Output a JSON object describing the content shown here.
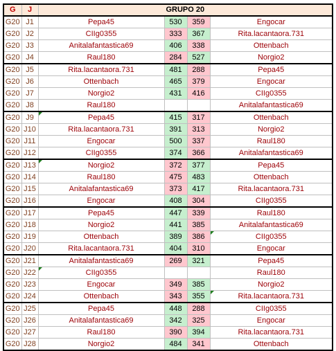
{
  "header": {
    "g": "G",
    "j": "J",
    "title": "GRUPO 20"
  },
  "rows": [
    {
      "g": "G20",
      "j": "J1",
      "home": "Pepa45",
      "hs": "530",
      "as": "359",
      "away": "Engocar",
      "hw": true
    },
    {
      "g": "G20",
      "j": "J2",
      "home": "CIIg0355",
      "hs": "333",
      "as": "367",
      "away": "Rita.lacantaora.731",
      "hw": false
    },
    {
      "g": "G20",
      "j": "J3",
      "home": "Anitalafantastica69",
      "hs": "406",
      "as": "338",
      "away": "Ottenbach",
      "hw": true
    },
    {
      "g": "G20",
      "j": "J4",
      "home": "Raul180",
      "hs": "284",
      "as": "527",
      "away": "Norgio2",
      "hw": false
    },
    {
      "g": "G20",
      "j": "J5",
      "home": "Rita.lacantaora.731",
      "hs": "481",
      "as": "288",
      "away": "Pepa45",
      "hw": true
    },
    {
      "g": "G20",
      "j": "J6",
      "home": "Ottenbach",
      "hs": "465",
      "as": "379",
      "away": "Engocar",
      "hw": true
    },
    {
      "g": "G20",
      "j": "J7",
      "home": "Norgio2",
      "hs": "431",
      "as": "416",
      "away": "CIIg0355",
      "hw": true
    },
    {
      "g": "G20",
      "j": "J8",
      "home": "Raul180",
      "hs": "",
      "as": "",
      "away": "Anitalafantastica69",
      "hw": null
    },
    {
      "g": "G20",
      "j": "J9",
      "home": "Pepa45",
      "hs": "415",
      "as": "317",
      "away": "Ottenbach",
      "hw": true
    },
    {
      "g": "G20",
      "j": "J10",
      "home": "Rita.lacantaora.731",
      "hs": "391",
      "as": "313",
      "away": "Norgio2",
      "hw": true
    },
    {
      "g": "G20",
      "j": "J11",
      "home": "Engocar",
      "hs": "500",
      "as": "337",
      "away": "Raul180",
      "hw": true
    },
    {
      "g": "G20",
      "j": "J12",
      "home": "CIIg0355",
      "hs": "374",
      "as": "366",
      "away": "Anitalafantastica69",
      "hw": true
    },
    {
      "g": "G20",
      "j": "J13",
      "home": "Norgio2",
      "hs": "372",
      "as": "377",
      "away": "Pepa45",
      "hw": false
    },
    {
      "g": "G20",
      "j": "J14",
      "home": "Raul180",
      "hs": "475",
      "as": "483",
      "away": "Ottenbach",
      "hw": false
    },
    {
      "g": "G20",
      "j": "J15",
      "home": "Anitalafantastica69",
      "hs": "373",
      "as": "417",
      "away": "Rita.lacantaora.731",
      "hw": false
    },
    {
      "g": "G20",
      "j": "J16",
      "home": "Engocar",
      "hs": "408",
      "as": "304",
      "away": "CIIg0355",
      "hw": true
    },
    {
      "g": "G20",
      "j": "J17",
      "home": "Pepa45",
      "hs": "447",
      "as": "339",
      "away": "Raul180",
      "hw": true
    },
    {
      "g": "G20",
      "j": "J18",
      "home": "Norgio2",
      "hs": "441",
      "as": "385",
      "away": "Anitalafantastica69",
      "hw": true
    },
    {
      "g": "G20",
      "j": "J19",
      "home": "Ottenbach",
      "hs": "389",
      "as": "386",
      "away": "CIIg0355",
      "hw": true
    },
    {
      "g": "G20",
      "j": "J20",
      "home": "Rita.lacantaora.731",
      "hs": "404",
      "as": "310",
      "away": "Engocar",
      "hw": true
    },
    {
      "g": "G20",
      "j": "J21",
      "home": "Anitalafantastica69",
      "hs": "269",
      "as": "321",
      "away": "Pepa45",
      "hw": false
    },
    {
      "g": "G20",
      "j": "J22",
      "home": "CIIg0355",
      "hs": "",
      "as": "",
      "away": "Raul180",
      "hw": null
    },
    {
      "g": "G20",
      "j": "J23",
      "home": "Engocar",
      "hs": "349",
      "as": "385",
      "away": "Norgio2",
      "hw": false
    },
    {
      "g": "G20",
      "j": "J24",
      "home": "Ottenbach",
      "hs": "343",
      "as": "355",
      "away": "Rita.lacantaora.731",
      "hw": false
    },
    {
      "g": "G20",
      "j": "J25",
      "home": "Pepa45",
      "hs": "448",
      "as": "288",
      "away": "CIIg0355",
      "hw": true
    },
    {
      "g": "G20",
      "j": "J26",
      "home": "Anitalafantastica69",
      "hs": "342",
      "as": "325",
      "away": "Engocar",
      "hw": true
    },
    {
      "g": "G20",
      "j": "J27",
      "home": "Raul180",
      "hs": "390",
      "as": "394",
      "away": "Rita.lacantaora.731",
      "hw": false
    },
    {
      "g": "G20",
      "j": "J28",
      "home": "Norgio2",
      "hs": "484",
      "as": "341",
      "away": "Ottenbach",
      "hw": true
    }
  ],
  "colors": {
    "win": "#c6efce",
    "lose": "#ffc7ce",
    "header": "#fde9d9",
    "team_text": "#9c0006"
  }
}
